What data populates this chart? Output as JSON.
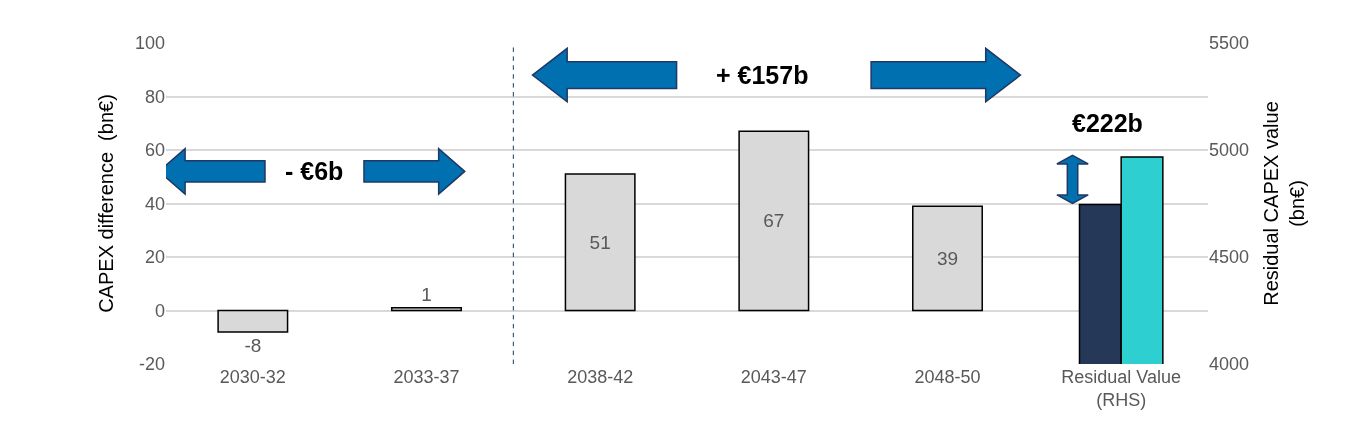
{
  "chart_data": {
    "type": "bar",
    "ylabel": "CAPEX difference  (bn€)",
    "y2label": "Residual CAPEX value\n(bn€)",
    "categories": [
      "2030-32",
      "2033-37",
      "2038-42",
      "2043-47",
      "2048-50",
      "Residual Value\n(RHS)"
    ],
    "series": [
      {
        "color": "#d9d9d9",
        "values": [
          -8,
          1,
          51,
          67,
          39,
          null
        ],
        "data_labels": true
      },
      {
        "color": "#253858",
        "values": [
          null,
          null,
          null,
          null,
          null,
          4745
        ],
        "axis": "y2"
      },
      {
        "color": "#2ecfd1",
        "values": [
          null,
          null,
          null,
          null,
          null,
          4967
        ],
        "axis": "y2"
      }
    ],
    "ylim": [
      -20,
      100
    ],
    "yticks": [
      -20,
      0,
      20,
      40,
      60,
      80,
      100
    ],
    "y2lim": [
      4000,
      5500
    ],
    "y2ticks": [
      4000,
      4500,
      5000,
      5500
    ],
    "annotations": [
      "- €6b",
      "+ €157b",
      "€222b"
    ],
    "grid": "y"
  }
}
